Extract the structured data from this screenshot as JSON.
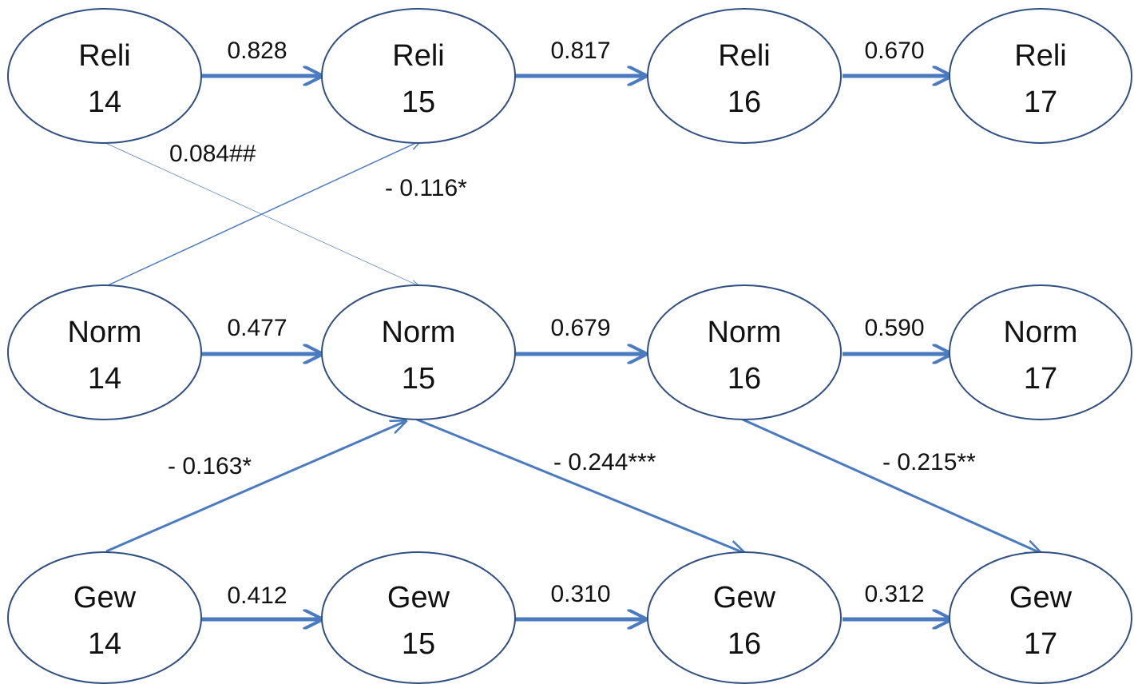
{
  "diagram": {
    "colors": {
      "edge": "#4a7bbf",
      "node_stroke": "#2f4f80",
      "text": "#111111"
    },
    "nodes": [
      {
        "id": "reli14",
        "line1": "Reli",
        "line2": "14"
      },
      {
        "id": "reli15",
        "line1": "Reli",
        "line2": "15"
      },
      {
        "id": "reli16",
        "line1": "Reli",
        "line2": "16"
      },
      {
        "id": "reli17",
        "line1": "Reli",
        "line2": "17"
      },
      {
        "id": "norm14",
        "line1": "Norm",
        "line2": "14"
      },
      {
        "id": "norm15",
        "line1": "Norm",
        "line2": "15"
      },
      {
        "id": "norm16",
        "line1": "Norm",
        "line2": "16"
      },
      {
        "id": "norm17",
        "line1": "Norm",
        "line2": "17"
      },
      {
        "id": "gew14",
        "line1": "Gew",
        "line2": "14"
      },
      {
        "id": "gew15",
        "line1": "Gew",
        "line2": "15"
      },
      {
        "id": "gew16",
        "line1": "Gew",
        "line2": "16"
      },
      {
        "id": "gew17",
        "line1": "Gew",
        "line2": "17"
      }
    ],
    "edges": [
      {
        "from": "reli14",
        "to": "reli15",
        "label": "0.828",
        "style": "thick"
      },
      {
        "from": "reli15",
        "to": "reli16",
        "label": "0.817",
        "style": "thick"
      },
      {
        "from": "reli16",
        "to": "reli17",
        "label": "0.670",
        "style": "thick"
      },
      {
        "from": "norm14",
        "to": "norm15",
        "label": "0.477",
        "style": "thick"
      },
      {
        "from": "norm15",
        "to": "norm16",
        "label": "0.679",
        "style": "thick"
      },
      {
        "from": "norm16",
        "to": "norm17",
        "label": "0.590",
        "style": "thick"
      },
      {
        "from": "gew14",
        "to": "gew15",
        "label": "0.412",
        "style": "thick"
      },
      {
        "from": "gew15",
        "to": "gew16",
        "label": "0.310",
        "style": "thick"
      },
      {
        "from": "gew16",
        "to": "gew17",
        "label": "0.312",
        "style": "thick"
      },
      {
        "from": "reli14",
        "to": "norm15",
        "label": "0.084##",
        "style": "hairline"
      },
      {
        "from": "norm14",
        "to": "reli15",
        "label": "- 0.116*",
        "style": "thin"
      },
      {
        "from": "gew14",
        "to": "norm15",
        "label": "- 0.163*",
        "style": "medium"
      },
      {
        "from": "norm15",
        "to": "gew16",
        "label": "- 0.244***",
        "style": "medium"
      },
      {
        "from": "norm16",
        "to": "gew17",
        "label": "- 0.215**",
        "style": "medium"
      }
    ]
  }
}
